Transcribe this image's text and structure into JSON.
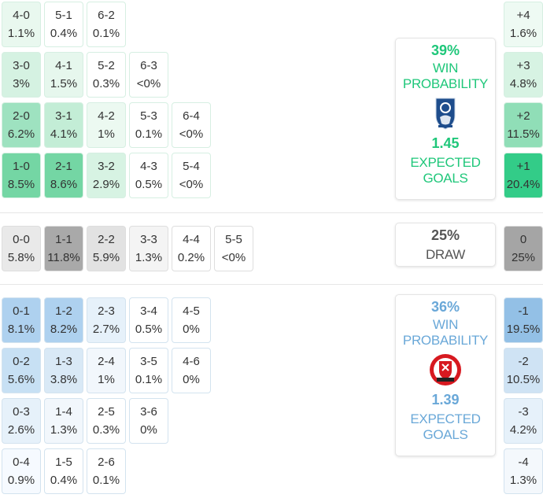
{
  "home": {
    "colors": {
      "accent": "#1fc77a"
    },
    "scores": [
      {
        "score": "4-0",
        "prob": "1.1%",
        "bg": "#e9f8ef"
      },
      {
        "score": "5-1",
        "prob": "0.4%",
        "bg": "#ffffff"
      },
      {
        "score": "6-2",
        "prob": "0.1%",
        "bg": "#ffffff"
      },
      {
        "score": "3-0",
        "prob": "3%",
        "bg": "#d5f2e2"
      },
      {
        "score": "4-1",
        "prob": "1.5%",
        "bg": "#e6f7ed"
      },
      {
        "score": "5-2",
        "prob": "0.3%",
        "bg": "#ffffff"
      },
      {
        "score": "6-3",
        "prob": "<0%",
        "bg": "#ffffff"
      },
      {
        "score": "2-0",
        "prob": "6.2%",
        "bg": "#9ee2c0"
      },
      {
        "score": "3-1",
        "prob": "4.1%",
        "bg": "#c3edd6"
      },
      {
        "score": "4-2",
        "prob": "1%",
        "bg": "#ecf9f1"
      },
      {
        "score": "5-3",
        "prob": "0.1%",
        "bg": "#ffffff"
      },
      {
        "score": "6-4",
        "prob": "<0%",
        "bg": "#ffffff"
      },
      {
        "score": "1-0",
        "prob": "8.5%",
        "bg": "#74d6a4"
      },
      {
        "score": "2-1",
        "prob": "8.6%",
        "bg": "#74d6a4"
      },
      {
        "score": "3-2",
        "prob": "2.9%",
        "bg": "#d7f3e3"
      },
      {
        "score": "4-3",
        "prob": "0.5%",
        "bg": "#ffffff"
      },
      {
        "score": "5-4",
        "prob": "<0%",
        "bg": "#ffffff"
      }
    ],
    "card": {
      "win_pct": "39%",
      "win_label_1": "WIN",
      "win_label_2": "PROBABILITY",
      "xg": "1.45",
      "xg_label_1": "EXPECTED",
      "xg_label_2": "GOALS",
      "crest_icon": "birmingham-crest-icon"
    },
    "margins": [
      {
        "margin": "+4",
        "prob": "1.6%",
        "bg": "#eefaf3"
      },
      {
        "margin": "+3",
        "prob": "4.8%",
        "bg": "#d7f3e3"
      },
      {
        "margin": "+2",
        "prob": "11.5%",
        "bg": "#90deb7"
      },
      {
        "margin": "+1",
        "prob": "20.4%",
        "bg": "#33cc88"
      }
    ]
  },
  "draw": {
    "scores": [
      {
        "score": "0-0",
        "prob": "5.8%",
        "bg": "#e9e9e9"
      },
      {
        "score": "1-1",
        "prob": "11.8%",
        "bg": "#a9a9a9"
      },
      {
        "score": "2-2",
        "prob": "5.9%",
        "bg": "#e2e2e2"
      },
      {
        "score": "3-3",
        "prob": "1.3%",
        "bg": "#f4f4f4"
      },
      {
        "score": "4-4",
        "prob": "0.2%",
        "bg": "#ffffff"
      },
      {
        "score": "5-5",
        "prob": "<0%",
        "bg": "#ffffff"
      }
    ],
    "card": {
      "pct": "25%",
      "label": "DRAW"
    },
    "margin": {
      "margin": "0",
      "prob": "25%",
      "bg": "#a5a5a5"
    }
  },
  "away": {
    "colors": {
      "accent": "#6aa8d8"
    },
    "scores": [
      {
        "score": "0-1",
        "prob": "8.1%",
        "bg": "#aed1ef"
      },
      {
        "score": "1-2",
        "prob": "8.2%",
        "bg": "#aed1ef"
      },
      {
        "score": "2-3",
        "prob": "2.7%",
        "bg": "#e6f1fa"
      },
      {
        "score": "3-4",
        "prob": "0.5%",
        "bg": "#ffffff"
      },
      {
        "score": "4-5",
        "prob": "0%",
        "bg": "#ffffff"
      },
      {
        "score": "0-2",
        "prob": "5.6%",
        "bg": "#c7e0f4"
      },
      {
        "score": "1-3",
        "prob": "3.8%",
        "bg": "#d9e9f6"
      },
      {
        "score": "2-4",
        "prob": "1%",
        "bg": "#f2f7fc"
      },
      {
        "score": "3-5",
        "prob": "0.1%",
        "bg": "#ffffff"
      },
      {
        "score": "4-6",
        "prob": "0%",
        "bg": "#ffffff"
      },
      {
        "score": "0-3",
        "prob": "2.6%",
        "bg": "#e6f1fa"
      },
      {
        "score": "1-4",
        "prob": "1.3%",
        "bg": "#f2f7fc"
      },
      {
        "score": "2-5",
        "prob": "0.3%",
        "bg": "#ffffff"
      },
      {
        "score": "3-6",
        "prob": "0%",
        "bg": "#ffffff"
      },
      {
        "score": "0-4",
        "prob": "0.9%",
        "bg": "#f6faff"
      },
      {
        "score": "1-5",
        "prob": "0.4%",
        "bg": "#ffffff"
      },
      {
        "score": "2-6",
        "prob": "0.1%",
        "bg": "#ffffff"
      }
    ],
    "card": {
      "win_pct": "36%",
      "win_label_1": "WIN",
      "win_label_2": "PROBABILITY",
      "xg": "1.39",
      "xg_label_1": "EXPECTED",
      "xg_label_2": "GOALS",
      "crest_icon": "sheffield-united-crest-icon"
    },
    "margins": [
      {
        "margin": "-1",
        "prob": "19.5%",
        "bg": "#93c0e6"
      },
      {
        "margin": "-2",
        "prob": "10.5%",
        "bg": "#cfe3f4"
      },
      {
        "margin": "-3",
        "prob": "4.2%",
        "bg": "#e6f1fa"
      },
      {
        "margin": "-4",
        "prob": "1.3%",
        "bg": "#f4f8fc"
      }
    ]
  }
}
